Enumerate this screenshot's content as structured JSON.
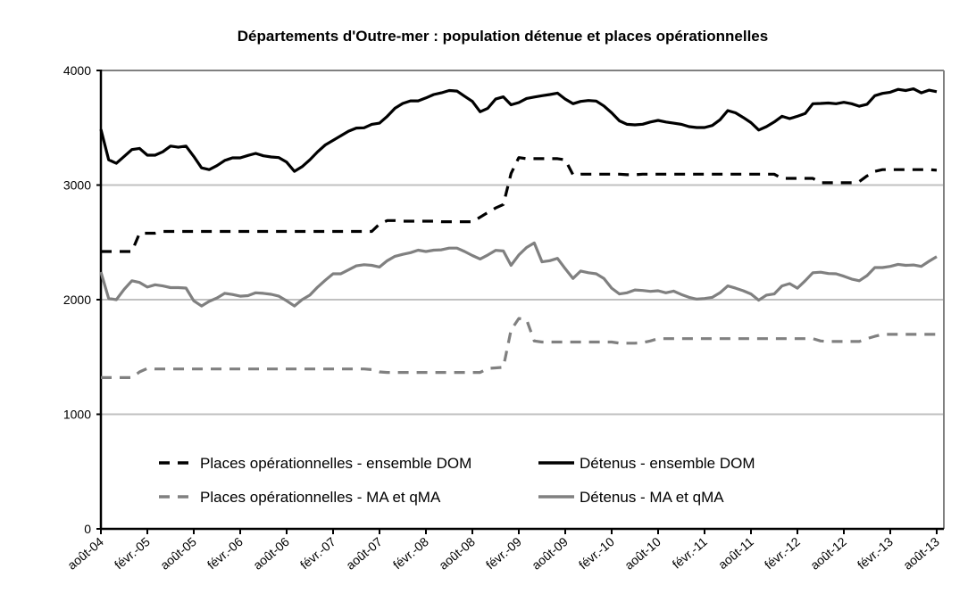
{
  "chart_data": {
    "type": "line",
    "title": "Départements d'Outre-mer : population détenue et places opérationnelles",
    "xlabel": "",
    "ylabel": "",
    "ylim": [
      0,
      4000
    ],
    "yticks": [
      "0",
      "1000",
      "2000",
      "3000",
      "4000"
    ],
    "grid": "horizontal",
    "legend_placement": "bottom-inside",
    "x": [
      "2004-08",
      "2004-09",
      "2004-10",
      "2004-11",
      "2004-12",
      "2005-01",
      "2005-02",
      "2005-03",
      "2005-04",
      "2005-05",
      "2005-06",
      "2005-07",
      "2005-08",
      "2005-09",
      "2005-10",
      "2005-11",
      "2005-12",
      "2006-01",
      "2006-02",
      "2006-03",
      "2006-04",
      "2006-05",
      "2006-06",
      "2006-07",
      "2006-08",
      "2006-09",
      "2006-10",
      "2006-11",
      "2006-12",
      "2007-01",
      "2007-02",
      "2007-03",
      "2007-04",
      "2007-05",
      "2007-06",
      "2007-07",
      "2007-08",
      "2007-09",
      "2007-10",
      "2007-11",
      "2007-12",
      "2008-01",
      "2008-02",
      "2008-03",
      "2008-04",
      "2008-05",
      "2008-06",
      "2008-07",
      "2008-08",
      "2008-09",
      "2008-10",
      "2008-11",
      "2008-12",
      "2009-01",
      "2009-02",
      "2009-03",
      "2009-04",
      "2009-05",
      "2009-06",
      "2009-07",
      "2009-08",
      "2009-09",
      "2009-10",
      "2009-11",
      "2009-12",
      "2010-01",
      "2010-02",
      "2010-03",
      "2010-04",
      "2010-05",
      "2010-06",
      "2010-07",
      "2010-08",
      "2010-09",
      "2010-10",
      "2010-11",
      "2010-12",
      "2011-01",
      "2011-02",
      "2011-03",
      "2011-04",
      "2011-05",
      "2011-06",
      "2011-07",
      "2011-08",
      "2011-09",
      "2011-10",
      "2011-11",
      "2011-12",
      "2012-01",
      "2012-02",
      "2012-03",
      "2012-04",
      "2012-05",
      "2012-06",
      "2012-07",
      "2012-08",
      "2012-09",
      "2012-10",
      "2012-11",
      "2012-12",
      "2013-01",
      "2013-02",
      "2013-03",
      "2013-04",
      "2013-05",
      "2013-06",
      "2013-07",
      "2013-08"
    ],
    "xtick_labels": [
      "août-04",
      "févr.-05",
      "août-05",
      "févr.-06",
      "août-06",
      "févr.-07",
      "août-07",
      "févr.-08",
      "août-08",
      "févr.-09",
      "août-09",
      "févr.-10",
      "août-10",
      "févr.-11",
      "août-11",
      "févr.-12",
      "août-12",
      "févr.-13",
      "août-13"
    ],
    "series": [
      {
        "name": "Places opérationnelles - ensemble DOM",
        "color": "#000000",
        "style": "dashed",
        "values": [
          2420,
          2420,
          2420,
          2420,
          2420,
          2580,
          2580,
          2580,
          2595,
          2595,
          2595,
          2595,
          2595,
          2595,
          2595,
          2595,
          2595,
          2595,
          2595,
          2595,
          2595,
          2595,
          2595,
          2595,
          2595,
          2595,
          2595,
          2595,
          2595,
          2595,
          2595,
          2595,
          2595,
          2595,
          2595,
          2595,
          2660,
          2690,
          2690,
          2685,
          2685,
          2685,
          2685,
          2685,
          2680,
          2680,
          2680,
          2680,
          2680,
          2720,
          2760,
          2800,
          2830,
          3100,
          3240,
          3230,
          3230,
          3230,
          3230,
          3230,
          3220,
          3090,
          3095,
          3095,
          3095,
          3095,
          3095,
          3095,
          3090,
          3090,
          3095,
          3095,
          3095,
          3095,
          3095,
          3095,
          3095,
          3095,
          3095,
          3095,
          3095,
          3095,
          3095,
          3095,
          3095,
          3095,
          3095,
          3095,
          3058,
          3058,
          3058,
          3058,
          3058,
          3020,
          3020,
          3020,
          3020,
          3020,
          3030,
          3080,
          3120,
          3135,
          3135,
          3135,
          3135,
          3135,
          3135,
          3135,
          3130
        ]
      },
      {
        "name": "Détenus - ensemble DOM",
        "color": "#000000",
        "style": "solid",
        "values": [
          3486,
          3220,
          3190,
          3250,
          3310,
          3320,
          3261,
          3261,
          3290,
          3340,
          3330,
          3340,
          3250,
          3150,
          3135,
          3170,
          3215,
          3237,
          3237,
          3258,
          3276,
          3255,
          3245,
          3240,
          3200,
          3120,
          3160,
          3220,
          3290,
          3350,
          3390,
          3430,
          3470,
          3497,
          3500,
          3530,
          3540,
          3600,
          3670,
          3712,
          3735,
          3735,
          3760,
          3790,
          3805,
          3825,
          3820,
          3775,
          3730,
          3640,
          3670,
          3750,
          3770,
          3700,
          3720,
          3756,
          3768,
          3780,
          3790,
          3802,
          3750,
          3710,
          3730,
          3738,
          3733,
          3690,
          3630,
          3560,
          3530,
          3525,
          3531,
          3550,
          3564,
          3550,
          3540,
          3530,
          3510,
          3502,
          3502,
          3520,
          3570,
          3650,
          3630,
          3590,
          3545,
          3480,
          3510,
          3550,
          3600,
          3580,
          3600,
          3624,
          3710,
          3712,
          3716,
          3710,
          3722,
          3710,
          3688,
          3705,
          3780,
          3800,
          3810,
          3835,
          3825,
          3840,
          3805,
          3828,
          3815
        ]
      },
      {
        "name": "Places opérationnelles - MA et qMA",
        "color": "#808080",
        "style": "dashed",
        "values": [
          1320,
          1320,
          1320,
          1320,
          1320,
          1370,
          1400,
          1395,
          1395,
          1395,
          1395,
          1395,
          1395,
          1395,
          1395,
          1395,
          1395,
          1395,
          1395,
          1395,
          1395,
          1395,
          1395,
          1395,
          1395,
          1395,
          1395,
          1395,
          1395,
          1395,
          1395,
          1395,
          1395,
          1395,
          1395,
          1390,
          1370,
          1365,
          1365,
          1365,
          1365,
          1365,
          1365,
          1365,
          1365,
          1365,
          1365,
          1365,
          1365,
          1365,
          1400,
          1405,
          1410,
          1735,
          1836,
          1825,
          1640,
          1630,
          1630,
          1630,
          1630,
          1630,
          1630,
          1630,
          1630,
          1630,
          1630,
          1620,
          1620,
          1620,
          1625,
          1640,
          1660,
          1660,
          1660,
          1660,
          1660,
          1660,
          1660,
          1660,
          1660,
          1660,
          1660,
          1660,
          1660,
          1660,
          1660,
          1660,
          1660,
          1660,
          1660,
          1660,
          1660,
          1640,
          1635,
          1635,
          1635,
          1635,
          1635,
          1660,
          1680,
          1697,
          1697,
          1697,
          1697,
          1697,
          1697,
          1697,
          1697
        ]
      },
      {
        "name": "Détenus - MA et qMA",
        "color": "#808080",
        "style": "solid",
        "values": [
          2241,
          2010,
          2000,
          2090,
          2165,
          2150,
          2110,
          2130,
          2120,
          2105,
          2105,
          2101,
          1990,
          1945,
          1985,
          2015,
          2055,
          2045,
          2030,
          2035,
          2060,
          2055,
          2047,
          2030,
          1990,
          1945,
          2000,
          2040,
          2110,
          2170,
          2226,
          2226,
          2260,
          2295,
          2305,
          2300,
          2285,
          2340,
          2378,
          2395,
          2410,
          2432,
          2420,
          2432,
          2435,
          2450,
          2450,
          2420,
          2385,
          2355,
          2390,
          2430,
          2425,
          2300,
          2390,
          2455,
          2495,
          2330,
          2340,
          2360,
          2270,
          2185,
          2250,
          2235,
          2226,
          2185,
          2100,
          2050,
          2060,
          2085,
          2080,
          2072,
          2078,
          2060,
          2075,
          2045,
          2020,
          2005,
          2010,
          2020,
          2060,
          2120,
          2100,
          2078,
          2050,
          1995,
          2040,
          2050,
          2120,
          2140,
          2100,
          2165,
          2235,
          2240,
          2228,
          2226,
          2205,
          2180,
          2165,
          2210,
          2280,
          2280,
          2290,
          2308,
          2300,
          2303,
          2290,
          2335,
          2375
        ]
      }
    ],
    "legend_order": [
      0,
      1,
      2,
      3
    ],
    "gridline_color": "#c0c0c0"
  }
}
